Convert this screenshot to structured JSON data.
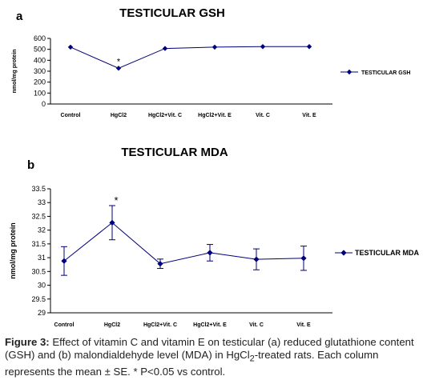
{
  "panels": [
    {
      "letter": "a"
    },
    {
      "letter": "b"
    }
  ],
  "chart_data": [
    {
      "type": "line",
      "title": "TESTICULAR GSH",
      "xlabel": "",
      "ylabel": "nmol/mg protein",
      "categories": [
        "Control",
        "HgCl2",
        "HgCl2+Vit. C",
        "HgCl2+Vit. E",
        "Vit. C",
        "Vit. E"
      ],
      "series": [
        {
          "name": "TESTICULAR GSH",
          "values": [
            520,
            327,
            508,
            520,
            525,
            525
          ]
        }
      ],
      "annotations": [
        {
          "category": "HgCl2",
          "text": "*"
        }
      ],
      "ylim": [
        0,
        600
      ],
      "yticks": [
        "0",
        "100",
        "200",
        "300",
        "400",
        "500",
        "600"
      ],
      "grid": false,
      "legend": "right",
      "color": "#00007a"
    },
    {
      "type": "line",
      "title": "TESTICULAR MDA",
      "xlabel": "",
      "ylabel": "nmol/mg protein",
      "categories": [
        "Control",
        "HgCl2",
        "HgCl2+Vit. C",
        "HgCl2+Vit. E",
        "Vit. C",
        "Vit. E"
      ],
      "series": [
        {
          "name": "TESTICULAR MDA",
          "values": [
            30.88,
            32.27,
            30.78,
            31.18,
            30.94,
            30.98
          ],
          "errors": [
            0.52,
            0.62,
            0.17,
            0.3,
            0.38,
            0.44
          ]
        }
      ],
      "annotations": [
        {
          "category": "HgCl2",
          "text": "*"
        }
      ],
      "ylim": [
        29,
        33.5
      ],
      "yticks": [
        "29",
        "29.5",
        "30",
        "30.5",
        "31",
        "31.5",
        "32",
        "32.5",
        "33",
        "33.5"
      ],
      "grid": false,
      "legend": "right",
      "color": "#00007a"
    }
  ],
  "caption": {
    "label": "Figure 3:",
    "text": " Effect of vitamin C and vitamin E on testicular (a) reduced glutathione content (GSH) and (b) malondialdehyde level (MDA) in HgCl",
    "subscript": "2",
    "text_after": "-treated rats. Each column represents the mean ± SE. * P<0.05 vs control."
  }
}
